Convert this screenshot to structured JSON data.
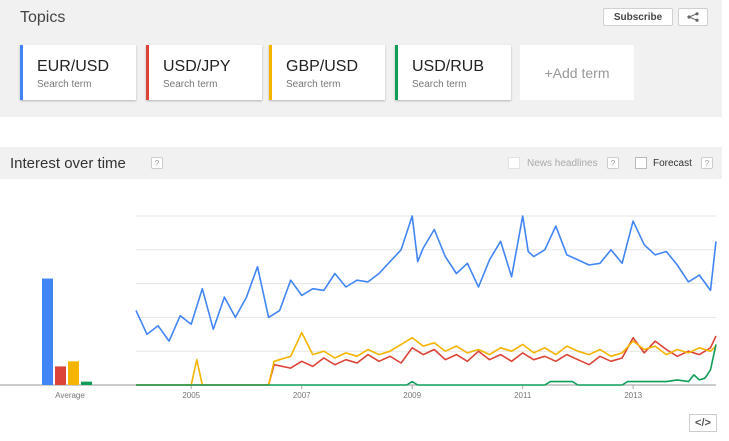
{
  "topics": {
    "title": "Topics",
    "subscribe_label": "Subscribe",
    "share_icon": "share-icon",
    "terms": [
      {
        "name": "EUR/USD",
        "sub": "Search term",
        "color": "#4285f4"
      },
      {
        "name": "USD/JPY",
        "sub": "Search term",
        "color": "#db4437"
      },
      {
        "name": "GBP/USD",
        "sub": "Search term",
        "color": "#f4b400"
      },
      {
        "name": "USD/RUB",
        "sub": "Search term",
        "color": "#0f9d58"
      }
    ],
    "add_term_label": "+Add term"
  },
  "interest": {
    "title": "Interest over time",
    "help": "?",
    "news_headlines_label": "News headlines",
    "forecast_label": "Forecast",
    "embed_label": "</>"
  },
  "chart_data": {
    "type": "line",
    "average": {
      "label": "Average",
      "values": [
        {
          "name": "EUR/USD",
          "value": 63
        },
        {
          "name": "USD/JPY",
          "value": 11
        },
        {
          "name": "GBP/USD",
          "value": 14
        },
        {
          "name": "USD/RUB",
          "value": 2
        }
      ]
    },
    "x_ticks": [
      "2005",
      "2007",
      "2009",
      "2011",
      "2013"
    ],
    "x_range": [
      2004.0,
      2014.5
    ],
    "ylim": [
      0,
      100
    ],
    "grid": true,
    "series": [
      {
        "name": "EUR/USD",
        "color": "#4285f4",
        "points": [
          [
            2004.0,
            44
          ],
          [
            2004.2,
            30
          ],
          [
            2004.4,
            35
          ],
          [
            2004.6,
            26
          ],
          [
            2004.8,
            41
          ],
          [
            2005.0,
            36
          ],
          [
            2005.2,
            57
          ],
          [
            2005.4,
            33
          ],
          [
            2005.6,
            52
          ],
          [
            2005.8,
            40
          ],
          [
            2006.0,
            52
          ],
          [
            2006.2,
            70
          ],
          [
            2006.4,
            40
          ],
          [
            2006.6,
            44
          ],
          [
            2006.8,
            62
          ],
          [
            2007.0,
            53
          ],
          [
            2007.2,
            57
          ],
          [
            2007.4,
            56
          ],
          [
            2007.6,
            66
          ],
          [
            2007.8,
            58
          ],
          [
            2008.0,
            62
          ],
          [
            2008.2,
            61
          ],
          [
            2008.4,
            66
          ],
          [
            2008.6,
            73
          ],
          [
            2008.8,
            80
          ],
          [
            2009.0,
            100
          ],
          [
            2009.1,
            73
          ],
          [
            2009.2,
            81
          ],
          [
            2009.4,
            92
          ],
          [
            2009.6,
            76
          ],
          [
            2009.8,
            66
          ],
          [
            2010.0,
            72
          ],
          [
            2010.2,
            58
          ],
          [
            2010.4,
            74
          ],
          [
            2010.6,
            85
          ],
          [
            2010.8,
            64
          ],
          [
            2011.0,
            100
          ],
          [
            2011.1,
            79
          ],
          [
            2011.2,
            76
          ],
          [
            2011.4,
            80
          ],
          [
            2011.6,
            94
          ],
          [
            2011.8,
            77
          ],
          [
            2012.0,
            74
          ],
          [
            2012.2,
            71
          ],
          [
            2012.4,
            72
          ],
          [
            2012.6,
            80
          ],
          [
            2012.8,
            72
          ],
          [
            2013.0,
            97
          ],
          [
            2013.2,
            83
          ],
          [
            2013.4,
            77
          ],
          [
            2013.6,
            79
          ],
          [
            2013.8,
            71
          ],
          [
            2014.0,
            61
          ],
          [
            2014.2,
            65
          ],
          [
            2014.4,
            56
          ],
          [
            2014.5,
            85
          ]
        ]
      },
      {
        "name": "USD/JPY",
        "color": "#db4437",
        "points": [
          [
            2004.0,
            0
          ],
          [
            2005.0,
            0
          ],
          [
            2006.0,
            0
          ],
          [
            2006.4,
            0
          ],
          [
            2006.5,
            12
          ],
          [
            2006.8,
            10
          ],
          [
            2007.0,
            14
          ],
          [
            2007.2,
            11
          ],
          [
            2007.4,
            16
          ],
          [
            2007.6,
            12
          ],
          [
            2007.8,
            15
          ],
          [
            2008.0,
            13
          ],
          [
            2008.2,
            18
          ],
          [
            2008.4,
            14
          ],
          [
            2008.6,
            17
          ],
          [
            2008.8,
            13
          ],
          [
            2009.0,
            22
          ],
          [
            2009.2,
            18
          ],
          [
            2009.4,
            21
          ],
          [
            2009.6,
            15
          ],
          [
            2009.8,
            18
          ],
          [
            2010.0,
            14
          ],
          [
            2010.2,
            20
          ],
          [
            2010.4,
            15
          ],
          [
            2010.6,
            18
          ],
          [
            2010.8,
            14
          ],
          [
            2011.0,
            19
          ],
          [
            2011.2,
            15
          ],
          [
            2011.4,
            17
          ],
          [
            2011.6,
            14
          ],
          [
            2011.8,
            18
          ],
          [
            2012.0,
            15
          ],
          [
            2012.2,
            12
          ],
          [
            2012.4,
            17
          ],
          [
            2012.6,
            14
          ],
          [
            2012.8,
            16
          ],
          [
            2013.0,
            28
          ],
          [
            2013.2,
            19
          ],
          [
            2013.4,
            26
          ],
          [
            2013.6,
            21
          ],
          [
            2013.8,
            17
          ],
          [
            2014.0,
            20
          ],
          [
            2014.2,
            18
          ],
          [
            2014.4,
            22
          ],
          [
            2014.5,
            29
          ]
        ]
      },
      {
        "name": "GBP/USD",
        "color": "#f4b400",
        "points": [
          [
            2004.0,
            0
          ],
          [
            2005.0,
            0
          ],
          [
            2005.1,
            15
          ],
          [
            2005.2,
            0
          ],
          [
            2006.0,
            0
          ],
          [
            2006.4,
            0
          ],
          [
            2006.5,
            14
          ],
          [
            2006.8,
            17
          ],
          [
            2007.0,
            31
          ],
          [
            2007.2,
            18
          ],
          [
            2007.4,
            20
          ],
          [
            2007.6,
            16
          ],
          [
            2007.8,
            19
          ],
          [
            2008.0,
            17
          ],
          [
            2008.2,
            21
          ],
          [
            2008.4,
            18
          ],
          [
            2008.6,
            20
          ],
          [
            2008.8,
            24
          ],
          [
            2009.0,
            28
          ],
          [
            2009.2,
            23
          ],
          [
            2009.4,
            25
          ],
          [
            2009.6,
            20
          ],
          [
            2009.8,
            23
          ],
          [
            2010.0,
            19
          ],
          [
            2010.2,
            21
          ],
          [
            2010.4,
            18
          ],
          [
            2010.6,
            22
          ],
          [
            2010.8,
            20
          ],
          [
            2011.0,
            24
          ],
          [
            2011.2,
            19
          ],
          [
            2011.4,
            22
          ],
          [
            2011.6,
            18
          ],
          [
            2011.8,
            23
          ],
          [
            2012.0,
            20
          ],
          [
            2012.2,
            18
          ],
          [
            2012.4,
            21
          ],
          [
            2012.6,
            17
          ],
          [
            2012.8,
            19
          ],
          [
            2013.0,
            26
          ],
          [
            2013.2,
            21
          ],
          [
            2013.4,
            23
          ],
          [
            2013.6,
            18
          ],
          [
            2013.8,
            21
          ],
          [
            2014.0,
            19
          ],
          [
            2014.2,
            22
          ],
          [
            2014.4,
            20
          ],
          [
            2014.5,
            23
          ]
        ]
      },
      {
        "name": "USD/RUB",
        "color": "#0f9d58",
        "points": [
          [
            2004.0,
            0
          ],
          [
            2006.0,
            0
          ],
          [
            2008.0,
            0
          ],
          [
            2008.9,
            0
          ],
          [
            2009.0,
            2
          ],
          [
            2009.1,
            0
          ],
          [
            2011.0,
            0
          ],
          [
            2011.4,
            0
          ],
          [
            2011.5,
            2
          ],
          [
            2011.9,
            2
          ],
          [
            2012.0,
            0
          ],
          [
            2012.8,
            0
          ],
          [
            2012.9,
            2
          ],
          [
            2013.2,
            2
          ],
          [
            2013.6,
            2
          ],
          [
            2013.8,
            3
          ],
          [
            2014.0,
            2
          ],
          [
            2014.1,
            6
          ],
          [
            2014.2,
            3
          ],
          [
            2014.3,
            4
          ],
          [
            2014.4,
            9
          ],
          [
            2014.5,
            24
          ]
        ]
      }
    ]
  }
}
